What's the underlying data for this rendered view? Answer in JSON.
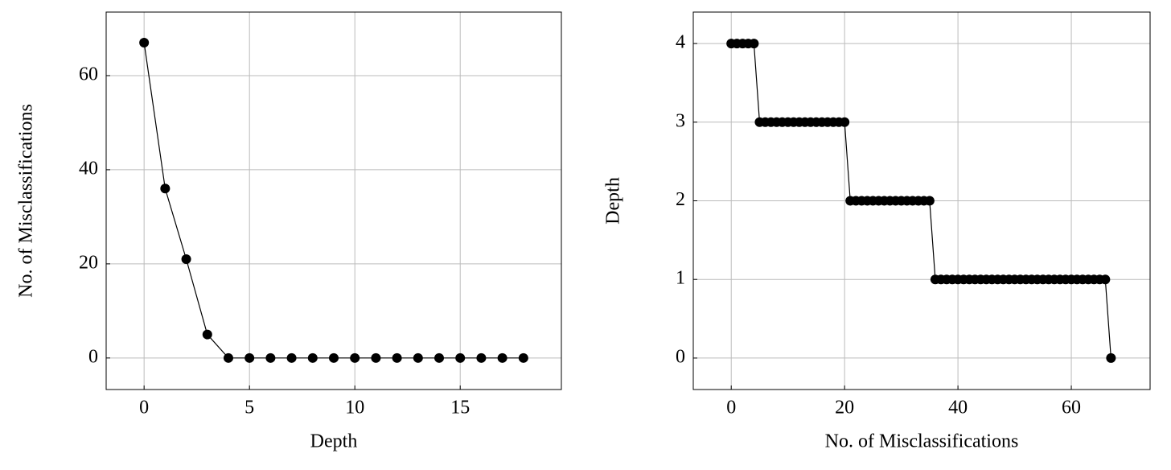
{
  "chart_data": [
    {
      "type": "line",
      "xlabel": "Depth",
      "ylabel": "No. of Misclassifications",
      "x": [
        0,
        1,
        2,
        3,
        4,
        5,
        6,
        7,
        8,
        9,
        10,
        11,
        12,
        13,
        14,
        15,
        16,
        17,
        18
      ],
      "series": [
        {
          "color": "#000000",
          "values": [
            67,
            36,
            21,
            5,
            0,
            0,
            0,
            0,
            0,
            0,
            0,
            0,
            0,
            0,
            0,
            0,
            0,
            0,
            0
          ]
        }
      ],
      "xlim": [
        -1.8,
        19.8
      ],
      "ylim": [
        -6.7,
        73.5
      ],
      "xticks": [
        0,
        5,
        10,
        15
      ],
      "yticks": [
        0,
        20,
        40,
        60
      ],
      "grid": true,
      "marker": "circle"
    },
    {
      "type": "line",
      "xlabel": "No. of Misclassifications",
      "ylabel": "Depth",
      "x": [
        0,
        1,
        2,
        3,
        4,
        5,
        6,
        7,
        8,
        9,
        10,
        11,
        12,
        13,
        14,
        15,
        16,
        17,
        18,
        19,
        20,
        21,
        22,
        23,
        24,
        25,
        26,
        27,
        28,
        29,
        30,
        31,
        32,
        33,
        34,
        35,
        36,
        37,
        38,
        39,
        40,
        41,
        42,
        43,
        44,
        45,
        46,
        47,
        48,
        49,
        50,
        51,
        52,
        53,
        54,
        55,
        56,
        57,
        58,
        59,
        60,
        61,
        62,
        63,
        64,
        65,
        66,
        67
      ],
      "series": [
        {
          "color": "#000000",
          "values": [
            4,
            4,
            4,
            4,
            4,
            3,
            3,
            3,
            3,
            3,
            3,
            3,
            3,
            3,
            3,
            3,
            3,
            3,
            3,
            3,
            3,
            2,
            2,
            2,
            2,
            2,
            2,
            2,
            2,
            2,
            2,
            2,
            2,
            2,
            2,
            2,
            1,
            1,
            1,
            1,
            1,
            1,
            1,
            1,
            1,
            1,
            1,
            1,
            1,
            1,
            1,
            1,
            1,
            1,
            1,
            1,
            1,
            1,
            1,
            1,
            1,
            1,
            1,
            1,
            1,
            1,
            1,
            0
          ]
        }
      ],
      "xlim": [
        -6.7,
        73.9
      ],
      "ylim": [
        -0.4,
        4.4
      ],
      "xticks": [
        0,
        20,
        40,
        60
      ],
      "yticks": [
        0,
        1,
        2,
        3,
        4
      ],
      "grid": true,
      "marker": "circle"
    }
  ]
}
